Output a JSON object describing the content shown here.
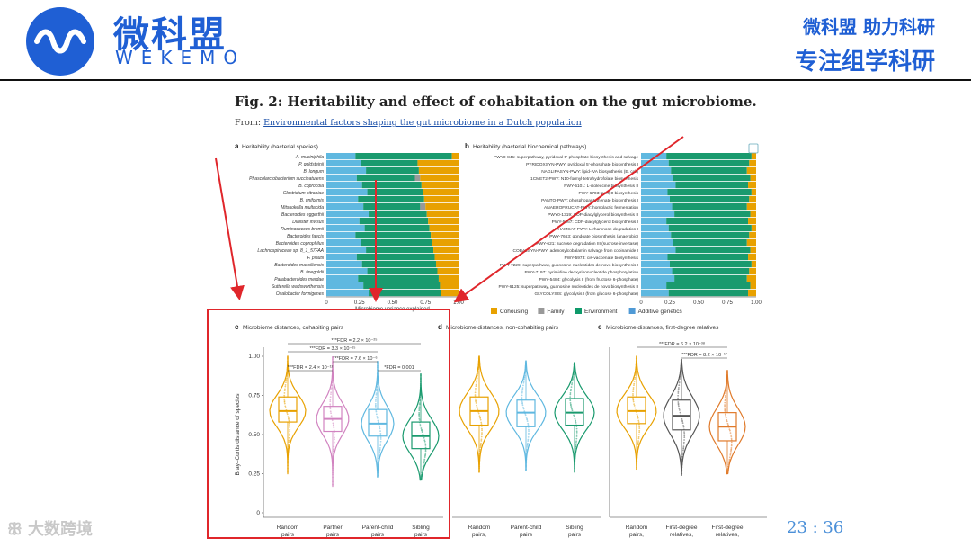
{
  "header": {
    "logo_cn": "微科盟",
    "logo_en": "WEKEMO",
    "slogan_line1": "微科盟  助力科研",
    "slogan_line2": "专注组学科研"
  },
  "figure": {
    "title": "Fig. 2: Heritability and effect of cohabitation on the gut microbiome.",
    "from_prefix": "From: ",
    "from_link": "Environmental factors shaping the gut microbiome in a Dutch population",
    "panel_a": {
      "label": "a",
      "title": "Heritability (bacterial species)",
      "species": [
        "A. muciniphila",
        "P. goldsteinii",
        "B. longum",
        "Phascolarctobacterium succinatutens",
        "B. coprocola",
        "Clostridium citroniae",
        "B. uniformis",
        "Mitsuokella multacida",
        "Bacteroides eggerthii",
        "Dialister invisus",
        "Ruminococcus bromii",
        "Bacteroides faecis",
        "Bacteroides coprophilus",
        "Lachnospiraceae sp. 8_1_57FAA",
        "F. plautii",
        "Bacteroides massiliensis",
        "B. finegoldii",
        "Parabacteroides merdae",
        "Sutterella wadsworthensis",
        "Oxalobacter formigenes"
      ],
      "xticks": [
        "0",
        "0.25",
        "0.50",
        "0.75",
        "1.00"
      ],
      "xlabel": "Microbiome variance explained"
    },
    "panel_b": {
      "label": "b",
      "title": "Heritability (bacterial biochemical pathways)",
      "pathways": [
        "PWY0-845: superpathway, pyridoxal 5'-phosphate biosynthesis and salvage",
        "PYRIDOXSYN-PWY: pyridoxal 5'-phosphate biosynthesis I",
        "NAGLIPASYN-PWY: lipid-IVA biosynthesis (E. coli)",
        "1CMET2-PWY: N10-formyl-tetrahydrofolate biosynthesis",
        "PWY-5101: L-isoleucine biosynthesis II",
        "PWY-6703: preQ0 biosynthesis",
        "PANTO-PWY: phosphopantothenate biosynthesis I",
        "ANAEROFRUCAT-PWY: homolactic fermentation",
        "PWY0-1319: CDP-diacylglycerol biosynthesis II",
        "PWY-5667: CDP-diacylglycerol biosynthesis I",
        "RHAMCAT-PWY: L-rhamnose degradation I",
        "PWY-7663: gondoate biosynthesis (anaerobic)",
        "PWY-621: sucrose degradation III (sucrose invertase)",
        "COBALSYN-PWY: adenosylcobalamin salvage from cobinamide I",
        "PWY-5973: cis-vaccenate biosynthesis",
        "PWY-7229: superpathway, guanosine nucleotides de novo biosynthesis I",
        "PWY-7197: pyrimidine deoxyribonucleotide phosphorylation",
        "PWY-5484: glycolysis II (from fructose 6-phosphate)",
        "PWY-6125: superpathway, guanosine nucleotides de novo biosynthesis II",
        "GLYCOLYSIS: glycolysis I (from glucose 6-phosphate)"
      ],
      "xticks": [
        "0",
        "0.25",
        "0.50",
        "0.75",
        "1.00"
      ]
    },
    "legend": {
      "items": [
        {
          "label": "Cohousing",
          "color": "#e8a100"
        },
        {
          "label": "Family",
          "color": "#999999"
        },
        {
          "label": "Environment",
          "color": "#0e9a6a"
        },
        {
          "label": "Additive genetics",
          "color": "#4f9ad6"
        }
      ]
    },
    "panel_c": {
      "label": "c",
      "title": "Microbiome distances, cohabiting pairs",
      "ylabel": "Bray–Curtis distance of species",
      "yticks": [
        "0",
        "0.25",
        "0.50",
        "0.75",
        "1.00"
      ],
      "groups": [
        "Random pairs",
        "Partner pairs",
        "Parent-child pairs",
        "Sibling pairs"
      ],
      "group_lines": [
        [
          "Random",
          "pairs"
        ],
        [
          "Partner",
          "pairs"
        ],
        [
          "Parent-child",
          "pairs"
        ],
        [
          "Sibling",
          "pairs"
        ]
      ],
      "annotations": [
        "***FDR = 2.2 × 10⁻²⁵",
        "***FDR = 3.3 × 10⁻¹⁵",
        "***FDR = 2.4 × 10⁻¹²",
        "***FDR = 7.6 × 10⁻⁶",
        "*FDR = 0.001"
      ]
    },
    "panel_d": {
      "label": "d",
      "title": "Microbiome distances, non-cohabiting pairs",
      "group_lines": [
        [
          "Random",
          "pairs,"
        ],
        [
          "Parent-child",
          "pairs"
        ],
        [
          "Sibling",
          "pairs"
        ]
      ]
    },
    "panel_e": {
      "label": "e",
      "title": "Microbiome distances, first-degree relatives",
      "group_lines": [
        [
          "Random",
          "pairs,"
        ],
        [
          "First-degree",
          "relatives,"
        ],
        [
          "First-degree",
          "relatives,"
        ]
      ],
      "annotations": [
        "***FDR = 6.2 × 10⁻³⁸",
        "***FDR = 8.2 × 10⁻¹⁷"
      ]
    }
  },
  "watermark": "大数跨境",
  "page_number": "23 : 36",
  "colors": {
    "brand": "#1f5fd4",
    "highlight": "#e0262b",
    "random": "#e8a100",
    "partner": "#d183c0",
    "parent_child": "#5fb8e0",
    "sibling": "#1a9a6e",
    "first_degree": "#555555",
    "first_degree2": "#e07a2a"
  }
}
